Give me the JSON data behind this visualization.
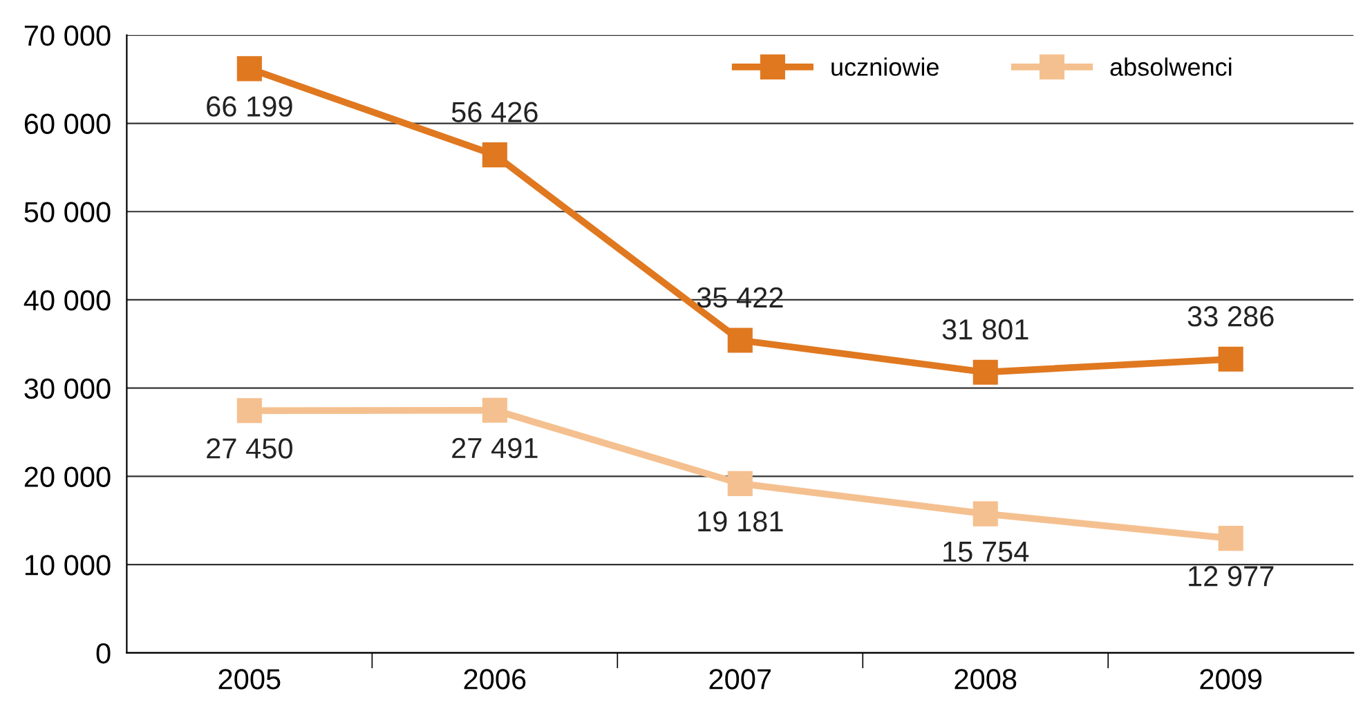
{
  "chart_data": {
    "type": "line",
    "categories": [
      "2005",
      "2006",
      "2007",
      "2008",
      "2009"
    ],
    "series": [
      {
        "name": "uczniowie",
        "color": "#e07820",
        "values": [
          66199,
          56426,
          35422,
          31801,
          33286
        ],
        "value_labels": [
          "66 199",
          "56 426",
          "35 422",
          "31 801",
          "33 286"
        ]
      },
      {
        "name": "absolwenci",
        "color": "#f5c08f",
        "values": [
          27450,
          27491,
          19181,
          15754,
          12977
        ],
        "value_labels": [
          "27 450",
          "27 491",
          "19 181",
          "15 754",
          "12 977"
        ]
      }
    ],
    "ylim": [
      0,
      70000
    ],
    "yticks": [
      {
        "value": 0,
        "label": "0"
      },
      {
        "value": 10000,
        "label": "10 000"
      },
      {
        "value": 20000,
        "label": "20 000"
      },
      {
        "value": 30000,
        "label": "30 000"
      },
      {
        "value": 40000,
        "label": "40 000"
      },
      {
        "value": 50000,
        "label": "50 000"
      },
      {
        "value": 60000,
        "label": "60 000"
      },
      {
        "value": 70000,
        "label": "70 000"
      }
    ],
    "grid": "y",
    "legend": "top right",
    "marker": "square",
    "line_style": "solid"
  }
}
